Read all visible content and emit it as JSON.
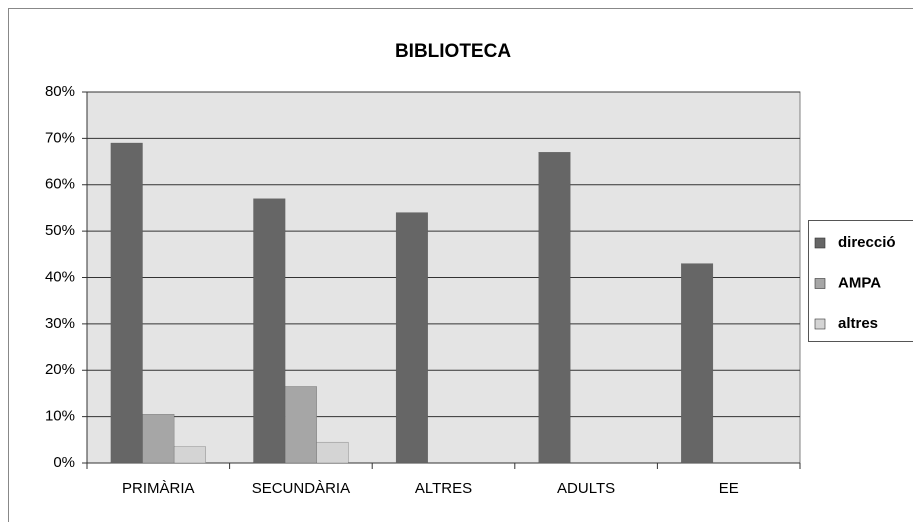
{
  "chart_data": {
    "type": "bar",
    "title": "BIBLIOTECA",
    "categories": [
      "PRIMÀRIA",
      "SECUNDÀRIA",
      "ALTRES",
      "ADULTS",
      "EE"
    ],
    "series": [
      {
        "name": "direcció",
        "color": "#666666",
        "values": [
          69,
          57,
          54,
          67,
          43
        ]
      },
      {
        "name": "AMPA",
        "color": "#a6a6a6",
        "values": [
          10.5,
          16.5,
          0,
          0,
          0
        ]
      },
      {
        "name": "altres",
        "color": "#d4d4d4",
        "values": [
          3.5,
          4.5,
          0,
          0,
          0
        ]
      }
    ],
    "ylim": [
      0,
      80
    ],
    "yticks": [
      {
        "value": 0,
        "label": "0%"
      },
      {
        "value": 10,
        "label": "10%"
      },
      {
        "value": 20,
        "label": "20%"
      },
      {
        "value": 30,
        "label": "30%"
      },
      {
        "value": 40,
        "label": "40%"
      },
      {
        "value": 50,
        "label": "50%"
      },
      {
        "value": 60,
        "label": "60%"
      },
      {
        "value": 70,
        "label": "70%"
      },
      {
        "value": 80,
        "label": "80%"
      }
    ],
    "grid": true,
    "legend": "right"
  }
}
